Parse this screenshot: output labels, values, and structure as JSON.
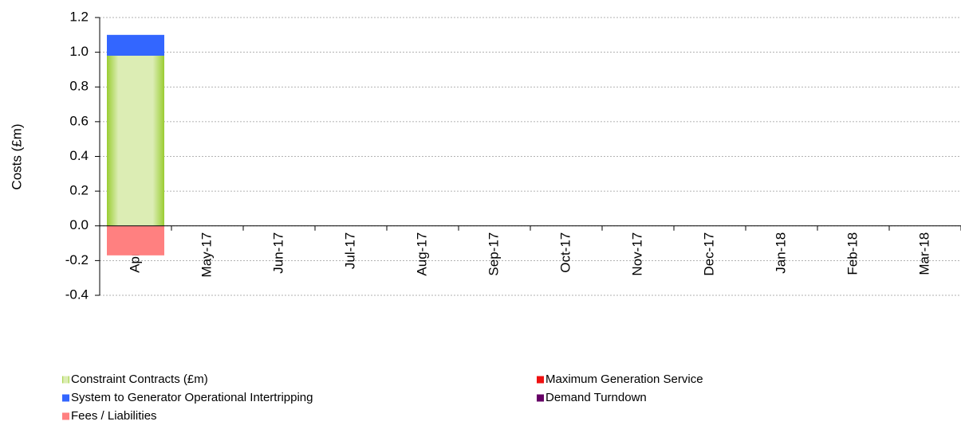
{
  "chart_data": {
    "type": "bar",
    "stacked": true,
    "ylabel": "Costs (£m)",
    "categories": [
      "Apr-17",
      "May-17",
      "Jun-17",
      "Jul-17",
      "Aug-17",
      "Sep-17",
      "Oct-17",
      "Nov-17",
      "Dec-17",
      "Jan-18",
      "Feb-18",
      "Mar-18"
    ],
    "series": [
      {
        "name": "Constraint Contracts (£m)",
        "color": "#9acd32",
        "values": [
          0.98,
          null,
          null,
          null,
          null,
          null,
          null,
          null,
          null,
          null,
          null,
          null
        ]
      },
      {
        "name": "Maximum Generation Service",
        "color": "#ee1111",
        "values": [
          0,
          null,
          null,
          null,
          null,
          null,
          null,
          null,
          null,
          null,
          null,
          null
        ]
      },
      {
        "name": "System to Generator Operational Intertripping",
        "color": "#3366ff",
        "values": [
          0.12,
          null,
          null,
          null,
          null,
          null,
          null,
          null,
          null,
          null,
          null,
          null
        ]
      },
      {
        "name": "Demand Turndown",
        "color": "#660066",
        "values": [
          0,
          null,
          null,
          null,
          null,
          null,
          null,
          null,
          null,
          null,
          null,
          null
        ]
      },
      {
        "name": "Fees / Liabilities",
        "color": "#ff8080",
        "values": [
          -0.17,
          null,
          null,
          null,
          null,
          null,
          null,
          null,
          null,
          null,
          null,
          null
        ]
      }
    ],
    "ylim": [
      -0.4,
      1.2
    ],
    "yticks": [
      -0.4,
      -0.2,
      {
        "value": 0,
        "label": "0.0"
      },
      0.2,
      0.4,
      0.6,
      0.8,
      {
        "value": 1,
        "label": "1.0"
      },
      1.2
    ],
    "grid": true
  }
}
